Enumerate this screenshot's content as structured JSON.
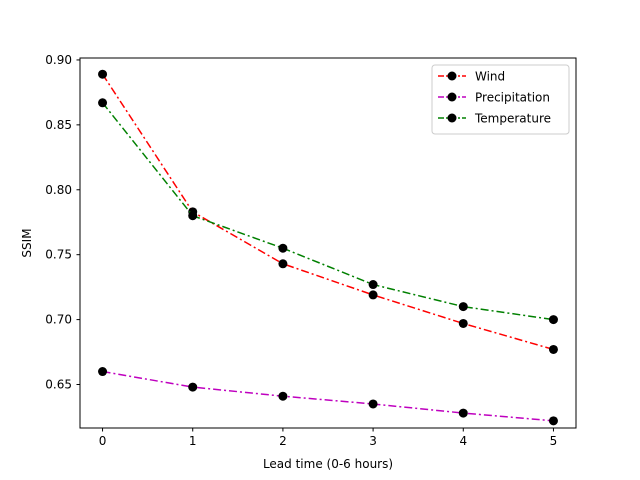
{
  "chart_data": {
    "type": "line",
    "title": "",
    "xlabel": "Lead time (0-6 hours)",
    "ylabel": "SSIM",
    "x": [
      0,
      1,
      2,
      3,
      4,
      5
    ],
    "xticks": [
      "0",
      "1",
      "2",
      "3",
      "4",
      "5"
    ],
    "yticks": [
      "0.65",
      "0.70",
      "0.75",
      "0.80",
      "0.85",
      "0.90"
    ],
    "xlim": [
      -0.25,
      5.25
    ],
    "ylim": [
      0.6165,
      0.9015
    ],
    "grid": false,
    "legend_position": "top-right",
    "series": [
      {
        "name": "Wind",
        "color": "#ff0000",
        "marker_color": "#000000",
        "linestyle": "dashdot",
        "values": [
          0.889,
          0.783,
          0.743,
          0.719,
          0.697,
          0.677
        ]
      },
      {
        "name": "Precipitation",
        "color": "#bf00bf",
        "marker_color": "#000000",
        "linestyle": "dashdot",
        "values": [
          0.66,
          0.648,
          0.641,
          0.635,
          0.628,
          0.622
        ]
      },
      {
        "name": "Temperature",
        "color": "#008000",
        "marker_color": "#000000",
        "linestyle": "dashdot",
        "values": [
          0.867,
          0.78,
          0.755,
          0.727,
          0.71,
          0.7
        ]
      }
    ]
  }
}
